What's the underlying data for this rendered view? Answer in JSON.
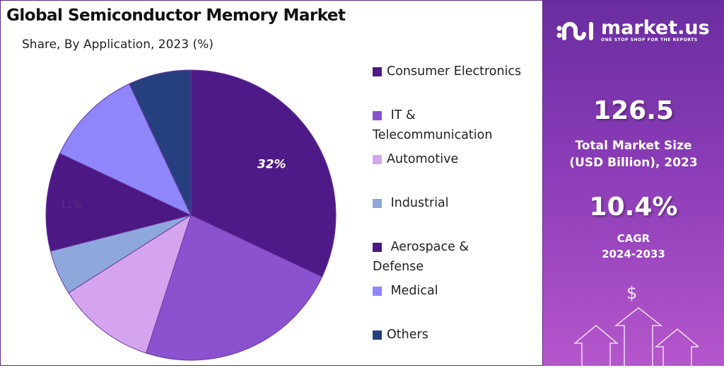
{
  "chart_data": {
    "type": "pie",
    "title": "Global Semiconductor Memory Market",
    "subtitle": "Share, By Application, 2023 (%)",
    "legend_position": "right",
    "slices": [
      {
        "name": "Consumer Electronics",
        "value": 32,
        "color": "#4e1a87",
        "label": "32%"
      },
      {
        "name": "IT & Telecommunication",
        "value": 23,
        "color": "#8b52cf"
      },
      {
        "name": "Automotive",
        "value": 11,
        "color": "#d4a5ee"
      },
      {
        "name": "Industrial",
        "value": 5,
        "color": "#8fa8dc"
      },
      {
        "name": "Aerospace & Defense",
        "value": 11,
        "color": "#4b1884",
        "label": "11%"
      },
      {
        "name": "Medical",
        "value": 11,
        "color": "#8f86fb"
      },
      {
        "name": "Others",
        "value": 7,
        "color": "#263f7f"
      }
    ]
  },
  "legend_lines": [
    [
      "Consumer Electronics"
    ],
    [
      " IT &",
      "Telecommunication"
    ],
    [
      "Automotive"
    ],
    [
      " Industrial"
    ],
    [
      " Aerospace &",
      "Defense"
    ],
    [
      " Medical"
    ],
    [
      "Others"
    ]
  ],
  "panel": {
    "logo_name": "market.us",
    "logo_tagline": "ONE STOP SHOP FOR THE REPORTS",
    "market_size": "126.5",
    "market_size_label_1": "Total Market Size",
    "market_size_label_2": "(USD Billion), 2023",
    "cagr": "10.4%",
    "cagr_label_1": "CAGR",
    "cagr_label_2": "2024-2033",
    "dollar_symbol": "$"
  }
}
